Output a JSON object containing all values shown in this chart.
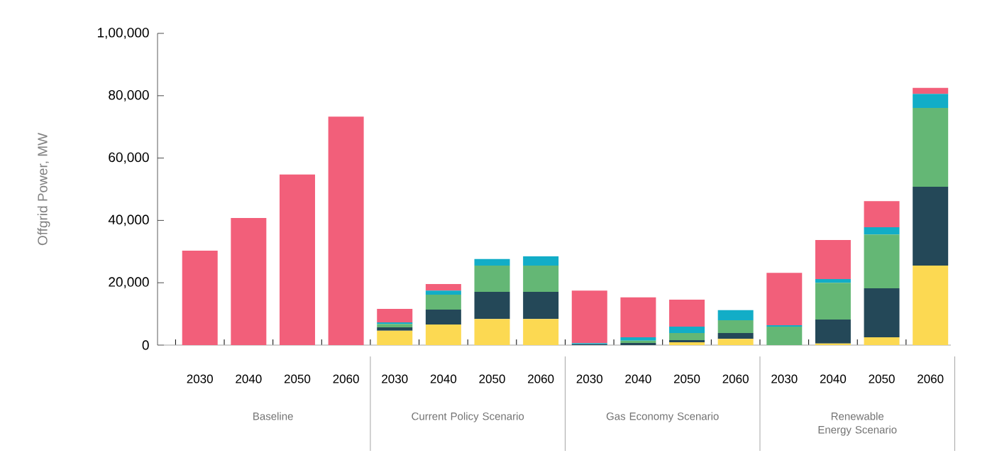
{
  "chart_data": {
    "type": "bar",
    "stacked": true,
    "ylabel": "Offgrid Power, MW",
    "categories": [
      "2030",
      "2040",
      "2050",
      "2060",
      "2030",
      "2040",
      "2050",
      "2060",
      "2030",
      "2040",
      "2050",
      "2060",
      "2030",
      "2040",
      "2050",
      "2060"
    ],
    "series": [
      {
        "color": "#fcd952",
        "values": [
          0,
          0,
          0,
          0,
          4600,
          6600,
          8400,
          8400,
          0,
          0,
          900,
          2000,
          0,
          500,
          2500,
          25500
        ]
      },
      {
        "color": "#244858",
        "values": [
          0,
          0,
          0,
          0,
          1100,
          4800,
          8700,
          8700,
          300,
          700,
          700,
          1900,
          0,
          7700,
          15700,
          25300
        ]
      },
      {
        "color": "#64b775",
        "values": [
          0,
          0,
          0,
          0,
          1100,
          4800,
          8400,
          8400,
          0,
          700,
          2300,
          4100,
          5900,
          11800,
          17300,
          25300
        ]
      },
      {
        "color": "#12adc7",
        "values": [
          0,
          0,
          0,
          0,
          500,
          1300,
          2100,
          3000,
          300,
          1100,
          2000,
          3200,
          500,
          1200,
          2300,
          4500
        ]
      },
      {
        "color": "#f25f7a",
        "values": [
          30300,
          40800,
          54700,
          73300,
          4300,
          2100,
          0,
          0,
          16900,
          12800,
          8700,
          0,
          16800,
          12500,
          8400,
          1900
        ]
      }
    ],
    "ylim": [
      0,
      100000
    ],
    "yticks": [
      0,
      {
        "value": 20000,
        "label": "20,000"
      },
      {
        "value": 40000,
        "label": "40,000"
      },
      {
        "value": 60000,
        "label": "60,000"
      },
      {
        "value": 80000,
        "label": "80,000"
      },
      {
        "value": 100000,
        "label": "1,00,000"
      }
    ],
    "annotations": [
      "Baseline",
      "Current Policy Scenario",
      "Gas Economy Scenario",
      "Renewable Energy Scenario"
    ]
  }
}
